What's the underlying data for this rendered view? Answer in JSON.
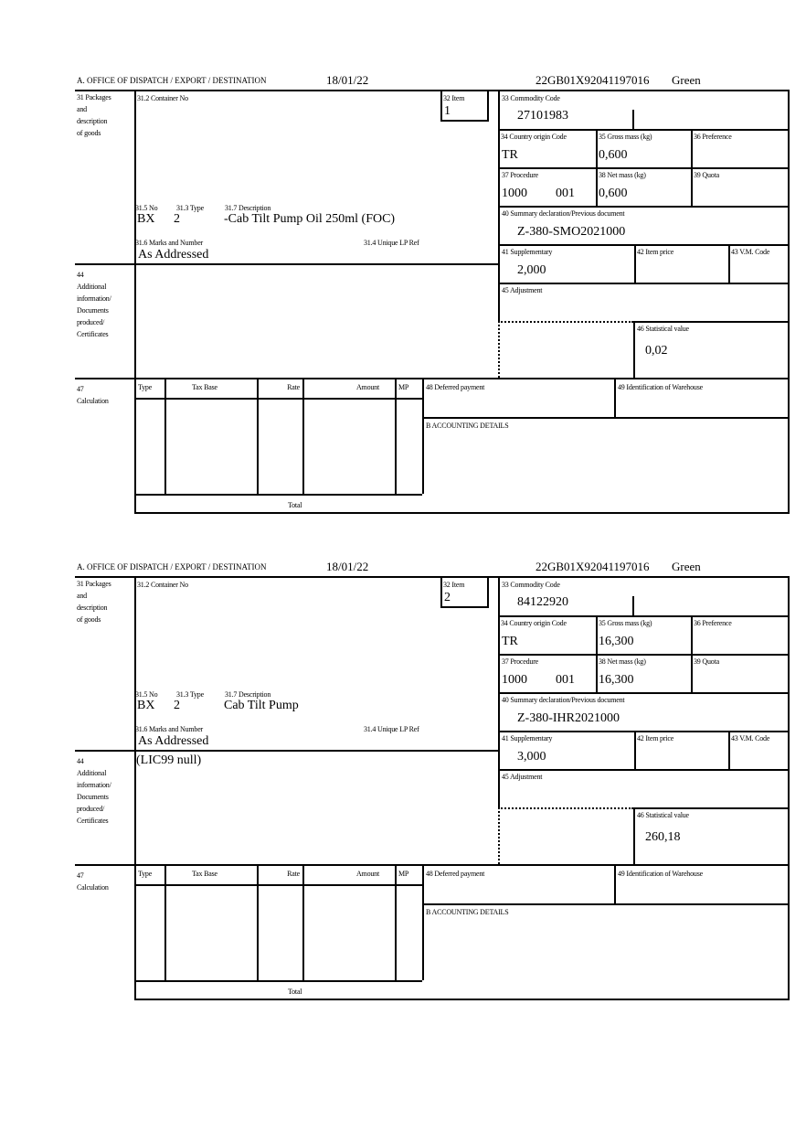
{
  "labels": {
    "office": "A.  OFFICE OF DISPATCH / EXPORT / DESTINATION",
    "box31": [
      "31 Packages",
      "and",
      "description",
      "of goods"
    ],
    "container_no": "31.2 Container No",
    "item": "32 Item",
    "no": "31.5 No",
    "type": "31.3 Type",
    "description": "31.7 Description",
    "marks": "31.6 Marks and Number",
    "unique_lp_ref": "31.4 Unique LP Ref",
    "box44": [
      "44",
      "Additional",
      "information/",
      "Documents",
      "produced/",
      "Certificates"
    ],
    "commodity_code": "33 Commodity Code",
    "country_origin": "34 Country origin Code",
    "gross_mass": "35 Gross mass (kg)",
    "preference": "36 Preference",
    "procedure": "37 Procedure",
    "net_mass": "38 Net mass (kg)",
    "quota": "39 Quota",
    "summary_decl": "40 Summary declaration/Previous document",
    "supplementary": "41 Supplementary",
    "item_price": "42 Item price",
    "vm_code": "43 V.M. Code",
    "adjustment": "45 Adjustment",
    "statistical_value": "46 Statistical value",
    "box47": [
      "47",
      "Calculation"
    ],
    "calc_type": "Type",
    "calc_tax_base": "Tax Base",
    "calc_rate": "Rate",
    "calc_amount": "Amount",
    "calc_mp": "MP",
    "deferred_payment": "48 Deferred payment",
    "warehouse": "49 Identification of Warehouse",
    "accounting": "B ACCOUNTING DETAILS",
    "total": "Total"
  },
  "forms": [
    {
      "date": "18/01/22",
      "reference": "22GB01X92041197016",
      "route": "Green",
      "item": "1",
      "no": "BX",
      "type": "2",
      "description": "-Cab Tilt Pump Oil 250ml (FOC)",
      "marks": "As Addressed",
      "additional_info": "",
      "commodity_code": "27101983",
      "country_origin": "TR",
      "gross_mass": "0,600",
      "procedure": "1000",
      "procedure_extra": "001",
      "net_mass": "0,600",
      "summary_decl": "Z-380-SMO2021000",
      "supplementary": "2,000",
      "statistical_value": "0,02"
    },
    {
      "date": "18/01/22",
      "reference": "22GB01X92041197016",
      "route": "Green",
      "item": "2",
      "no": "BX",
      "type": "2",
      "description": "Cab Tilt Pump",
      "marks": "As Addressed",
      "additional_info": "(LIC99 null)",
      "commodity_code": "84122920",
      "country_origin": "TR",
      "gross_mass": "16,300",
      "procedure": "1000",
      "procedure_extra": "001",
      "net_mass": "16,300",
      "summary_decl": "Z-380-IHR2021000",
      "supplementary": "3,000",
      "statistical_value": "260,18"
    }
  ]
}
